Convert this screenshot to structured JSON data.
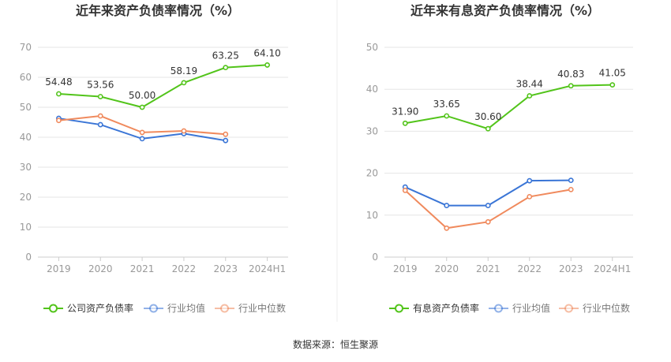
{
  "source": "数据来源：恒生聚源",
  "colors": {
    "company": "#52c41a",
    "avg": "#3a75d6",
    "median": "#f08a5d",
    "grid": "#e6e6e6",
    "axis": "#999999"
  },
  "chart_data": [
    {
      "type": "line",
      "title": "近年来资产负债率情况（%）",
      "categories": [
        "2019",
        "2020",
        "2021",
        "2022",
        "2023",
        "2024H1"
      ],
      "ylim": [
        0,
        70
      ],
      "yticks": [
        0,
        10,
        20,
        30,
        40,
        50,
        60,
        70
      ],
      "grid": true,
      "legend": "bottom",
      "series": [
        {
          "name": "公司资产负债率",
          "key": "company",
          "values": [
            54.48,
            53.56,
            50.0,
            58.19,
            63.25,
            64.1
          ],
          "labels": [
            "54.48",
            "53.56",
            "50.00",
            "58.19",
            "63.25",
            "64.10"
          ]
        },
        {
          "name": "行业均值",
          "key": "avg",
          "values": [
            46.3,
            44.2,
            39.5,
            41.2,
            38.9,
            null
          ]
        },
        {
          "name": "行业中位数",
          "key": "median",
          "values": [
            45.6,
            47.1,
            41.6,
            42.1,
            41.0,
            null
          ]
        }
      ]
    },
    {
      "type": "line",
      "title": "近年来有息资产负债率情况（%）",
      "categories": [
        "2019",
        "2020",
        "2021",
        "2022",
        "2023",
        "2024H1"
      ],
      "ylim": [
        0,
        50
      ],
      "yticks": [
        0,
        10,
        20,
        30,
        40,
        50
      ],
      "grid": true,
      "legend": "bottom",
      "series": [
        {
          "name": "有息资产负债率",
          "key": "company",
          "values": [
            31.9,
            33.65,
            30.6,
            38.44,
            40.83,
            41.05
          ],
          "labels": [
            "31.90",
            "33.65",
            "30.60",
            "38.44",
            "40.83",
            "41.05"
          ]
        },
        {
          "name": "行业均值",
          "key": "avg",
          "values": [
            16.7,
            12.3,
            12.3,
            18.2,
            18.3,
            null
          ]
        },
        {
          "name": "行业中位数",
          "key": "median",
          "values": [
            15.9,
            6.9,
            8.4,
            14.4,
            16.1,
            null
          ]
        }
      ]
    }
  ]
}
